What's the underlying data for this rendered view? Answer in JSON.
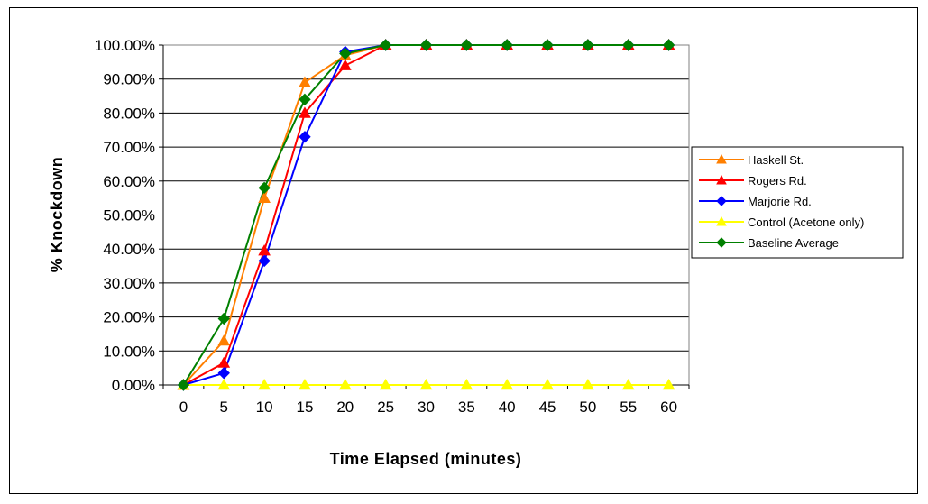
{
  "chart_data": {
    "type": "line",
    "title": "",
    "xlabel": "Time Elapsed (minutes)",
    "ylabel": "% Knockdown",
    "categories": [
      "0",
      "5",
      "10",
      "15",
      "20",
      "25",
      "30",
      "35",
      "40",
      "45",
      "50",
      "55",
      "60"
    ],
    "y_tick_labels": [
      "0.00%",
      "10.00%",
      "20.00%",
      "30.00%",
      "40.00%",
      "50.00%",
      "60.00%",
      "70.00%",
      "80.00%",
      "90.00%",
      "100.00%"
    ],
    "ylim": [
      0,
      100
    ],
    "grid": "horizontal",
    "legend_position": "right",
    "series": [
      {
        "name": "Haskell St.",
        "color": "#FF7F00",
        "marker": "triangle",
        "values": [
          0,
          13,
          55,
          89,
          97,
          100,
          100,
          100,
          100,
          100,
          100,
          100,
          100
        ]
      },
      {
        "name": "Rogers Rd.",
        "color": "#FF0000",
        "marker": "triangle",
        "values": [
          0,
          6.5,
          39.5,
          80,
          94,
          100,
          100,
          100,
          100,
          100,
          100,
          100,
          100
        ]
      },
      {
        "name": "Marjorie Rd.",
        "color": "#0000FF",
        "marker": "diamond",
        "values": [
          0,
          3.5,
          36.5,
          73,
          98,
          100,
          100,
          100,
          100,
          100,
          100,
          100,
          100
        ]
      },
      {
        "name": "Control (Acetone only)",
        "color": "#FFFF00",
        "marker": "triangle",
        "values": [
          0,
          0,
          0,
          0,
          0,
          0,
          0,
          0,
          0,
          0,
          0,
          0,
          0
        ]
      },
      {
        "name": "Baseline Average",
        "color": "#008000",
        "marker": "diamond",
        "values": [
          0,
          19.5,
          58,
          84,
          97.5,
          100,
          100,
          100,
          100,
          100,
          100,
          100,
          100
        ]
      }
    ]
  }
}
